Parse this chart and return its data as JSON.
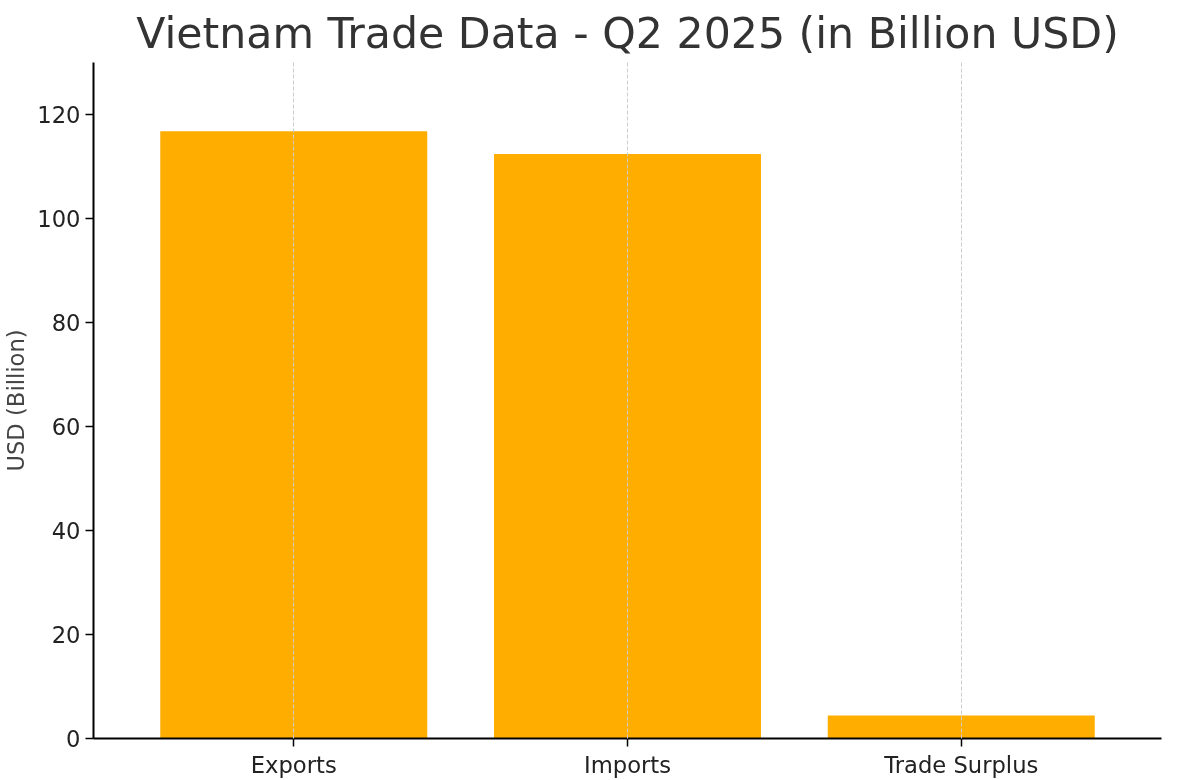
{
  "chart_data": {
    "type": "bar",
    "title": "Vietnam Trade Data - Q2 2025 (in Billion USD)",
    "ylabel": "USD (Billion)",
    "categories": [
      "Exports",
      "Imports",
      "Trade Surplus"
    ],
    "values": [
      116.8,
      112.4,
      4.4
    ],
    "color": "#ffae00",
    "ylim": [
      0,
      130
    ],
    "yticks": [
      0,
      20,
      40,
      60,
      80,
      100,
      120
    ],
    "grid": "x"
  }
}
